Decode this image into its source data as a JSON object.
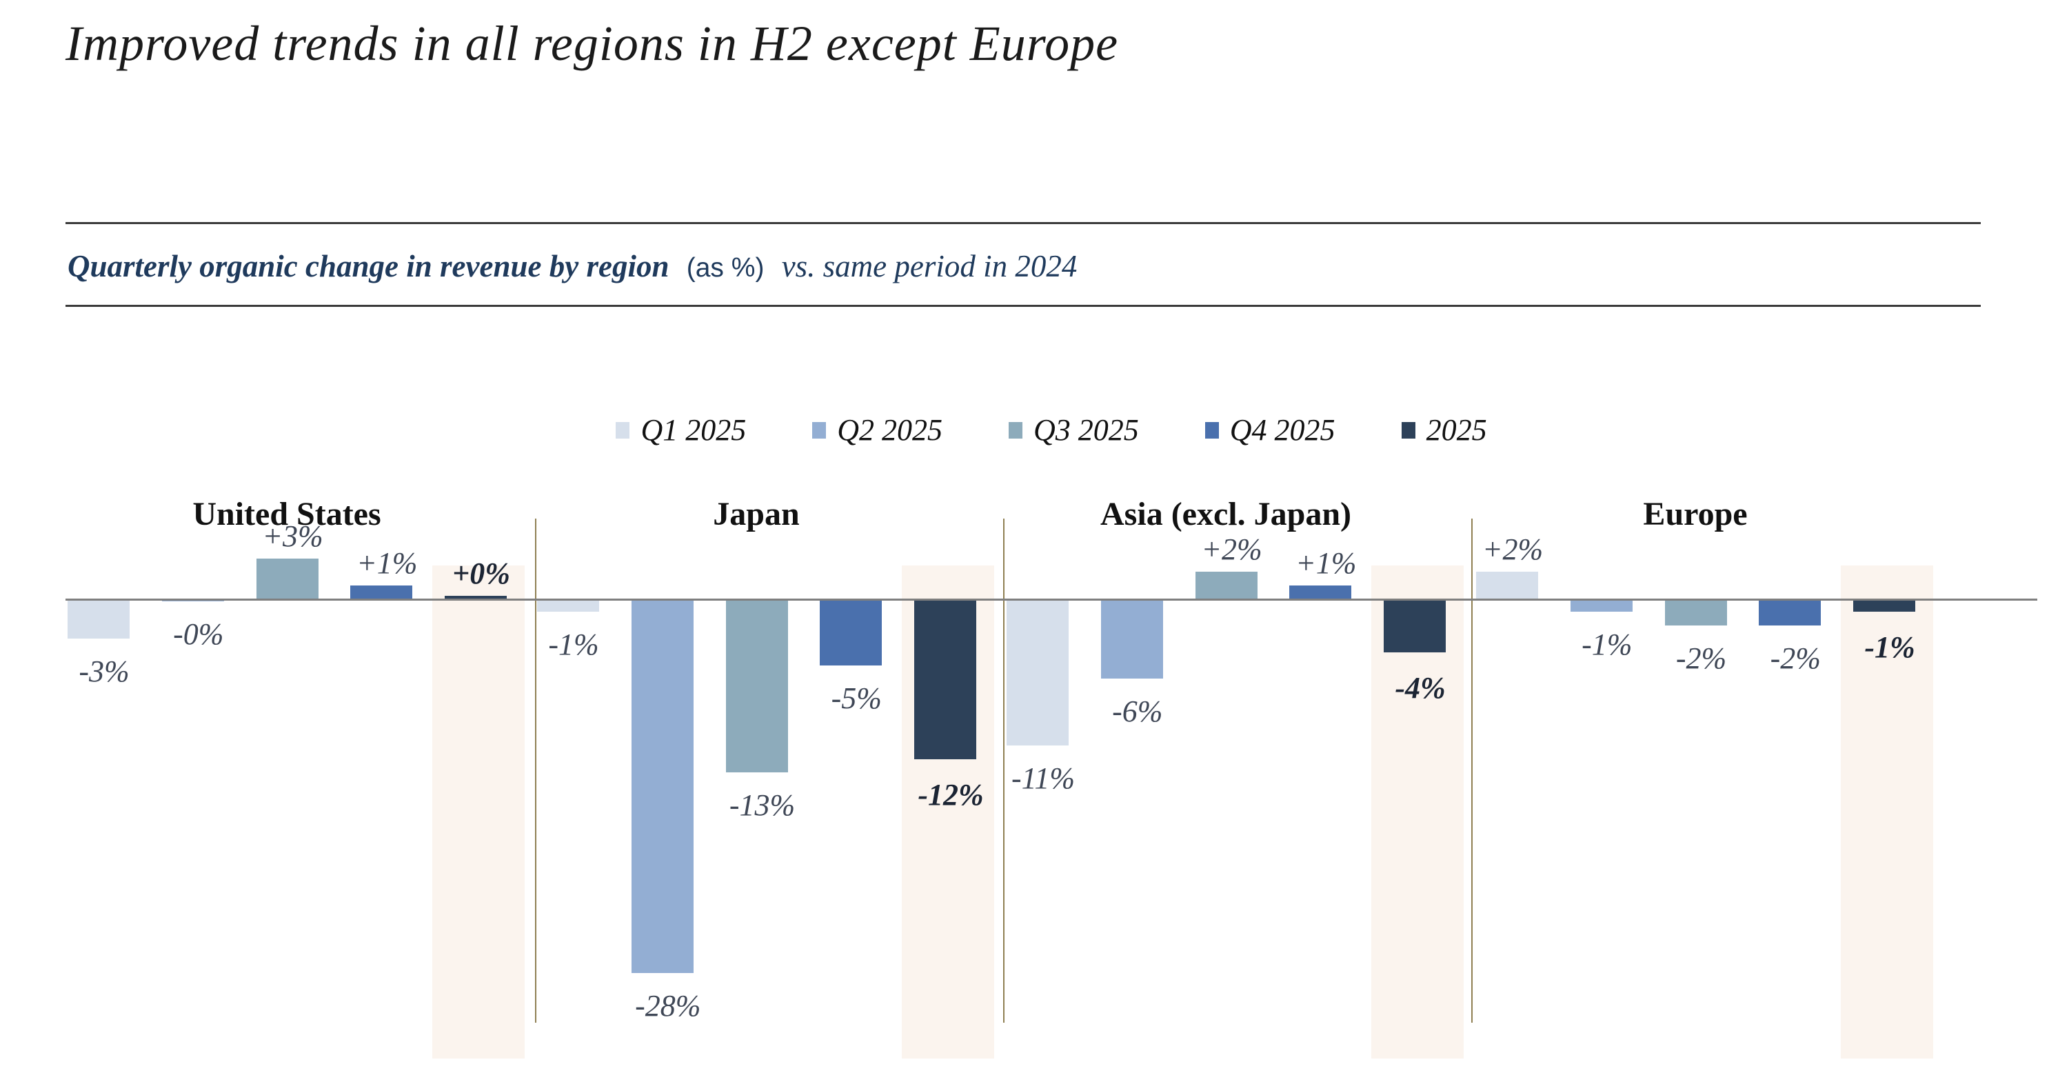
{
  "title": "Improved trends in all regions in H2 except Europe",
  "subtitle": {
    "bold": "Quarterly organic change in revenue by region",
    "unit": "(as %)",
    "rest": "vs. same period in 2024"
  },
  "colors": {
    "q1": "#d6dfeb",
    "q2": "#93aed3",
    "q3": "#8dabbb",
    "q4": "#4a70ad",
    "year2025": "#2d4159",
    "summary_band": "#fbf4ee",
    "zero_line": "#7f7f7f",
    "separator_line": "#8f7f52",
    "label": "#3f4756",
    "label_emphasis": "#1b2433",
    "subtitle_navy": "#1f3a5c"
  },
  "chart_data": {
    "type": "bar",
    "title": "Quarterly organic change in revenue by region (as %) vs. same period in 2024",
    "unit": "%",
    "baseline": 0,
    "grid": false,
    "legend_position": "top-center",
    "categories": [
      "United States",
      "Japan",
      "Asia (excl. Japan)",
      "Europe"
    ],
    "series": [
      {
        "name": "Q1 2025",
        "color": "#d6dfeb",
        "values": [
          -3,
          -1,
          -11,
          2
        ],
        "labels": [
          "-3%",
          "-1%",
          "-11%",
          "+2%"
        ],
        "emphasis": false
      },
      {
        "name": "Q2 2025",
        "color": "#93aed3",
        "values": [
          0,
          -28,
          -6,
          -1
        ],
        "labels": [
          "-0%",
          "-28%",
          "-6%",
          "-1%"
        ],
        "emphasis": false
      },
      {
        "name": "Q3 2025",
        "color": "#8dabbb",
        "values": [
          3,
          -13,
          2,
          -2
        ],
        "labels": [
          "+3%",
          "-13%",
          "+2%",
          "-2%"
        ],
        "emphasis": false
      },
      {
        "name": "Q4 2025",
        "color": "#4a70ad",
        "values": [
          1,
          -5,
          1,
          -2
        ],
        "labels": [
          "+1%",
          "-5%",
          "+1%",
          "-2%"
        ],
        "emphasis": false
      },
      {
        "name": "2025",
        "color": "#2d4159",
        "values": [
          0,
          -12,
          -4,
          -1
        ],
        "labels": [
          "+0%",
          "-12%",
          "-4%",
          "-1%"
        ],
        "emphasis": true
      }
    ]
  }
}
